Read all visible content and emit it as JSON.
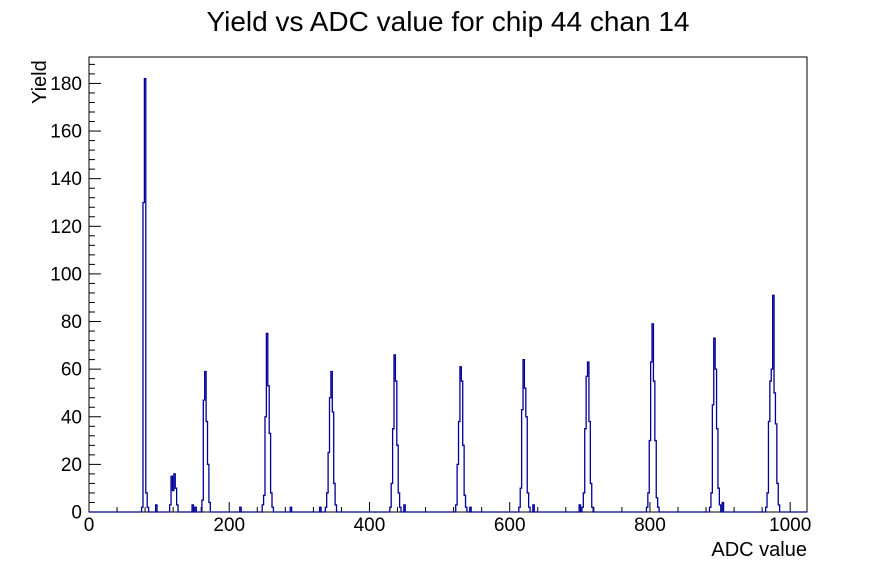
{
  "chart_data": {
    "type": "line",
    "style": "root-histogram-step-outline",
    "title": "Yield vs ADC value for chip 44 chan 14",
    "xlabel": "ADC value",
    "ylabel": "Yield",
    "xlim": [
      0,
      1024
    ],
    "ylim": [
      0,
      191.1
    ],
    "grid": false,
    "legend": "none",
    "line_color": "#000099",
    "frame_color": "#000000",
    "x_major_ticks": [
      0,
      200,
      400,
      600,
      800,
      1000
    ],
    "x_minor_tick_step": 40,
    "y_major_ticks": [
      0,
      20,
      40,
      60,
      80,
      100,
      120,
      140,
      160,
      180
    ],
    "y_minor_tick_step": 4,
    "bin_width": 2,
    "peaks": [
      {
        "adc": 80,
        "max": 182
      },
      {
        "adc": 122,
        "max": 16
      },
      {
        "adc": 166,
        "max": 59
      },
      {
        "adc": 254,
        "max": 75
      },
      {
        "adc": 346,
        "max": 59
      },
      {
        "adc": 436,
        "max": 66
      },
      {
        "adc": 530,
        "max": 61
      },
      {
        "adc": 620,
        "max": 64
      },
      {
        "adc": 712,
        "max": 63
      },
      {
        "adc": 804,
        "max": 79
      },
      {
        "adc": 892,
        "max": 73
      },
      {
        "adc": 976,
        "max": 91
      }
    ],
    "bins": [
      [
        76,
        2
      ],
      [
        78,
        130
      ],
      [
        80,
        182
      ],
      [
        82,
        8
      ],
      [
        84,
        2
      ],
      [
        96,
        3
      ],
      [
        116,
        3
      ],
      [
        118,
        15
      ],
      [
        120,
        9
      ],
      [
        122,
        16
      ],
      [
        124,
        10
      ],
      [
        126,
        3
      ],
      [
        148,
        3
      ],
      [
        152,
        2
      ],
      [
        162,
        5
      ],
      [
        164,
        47
      ],
      [
        166,
        59
      ],
      [
        168,
        38
      ],
      [
        170,
        20
      ],
      [
        172,
        4
      ],
      [
        216,
        2
      ],
      [
        248,
        3
      ],
      [
        250,
        7
      ],
      [
        252,
        40
      ],
      [
        254,
        75
      ],
      [
        256,
        53
      ],
      [
        258,
        33
      ],
      [
        260,
        8
      ],
      [
        262,
        2
      ],
      [
        288,
        2
      ],
      [
        330,
        2
      ],
      [
        338,
        2
      ],
      [
        340,
        8
      ],
      [
        342,
        25
      ],
      [
        344,
        48
      ],
      [
        346,
        59
      ],
      [
        348,
        42
      ],
      [
        350,
        12
      ],
      [
        352,
        3
      ],
      [
        430,
        2
      ],
      [
        432,
        12
      ],
      [
        434,
        35
      ],
      [
        436,
        66
      ],
      [
        438,
        55
      ],
      [
        440,
        28
      ],
      [
        442,
        8
      ],
      [
        444,
        2
      ],
      [
        450,
        3
      ],
      [
        524,
        3
      ],
      [
        526,
        20
      ],
      [
        528,
        38
      ],
      [
        530,
        61
      ],
      [
        532,
        55
      ],
      [
        534,
        28
      ],
      [
        536,
        7
      ],
      [
        538,
        2
      ],
      [
        544,
        2
      ],
      [
        614,
        2
      ],
      [
        616,
        10
      ],
      [
        618,
        43
      ],
      [
        620,
        64
      ],
      [
        622,
        52
      ],
      [
        624,
        40
      ],
      [
        626,
        8
      ],
      [
        628,
        2
      ],
      [
        634,
        3
      ],
      [
        700,
        3
      ],
      [
        704,
        2
      ],
      [
        706,
        8
      ],
      [
        708,
        35
      ],
      [
        710,
        57
      ],
      [
        712,
        63
      ],
      [
        714,
        38
      ],
      [
        716,
        12
      ],
      [
        718,
        2
      ],
      [
        796,
        2
      ],
      [
        798,
        8
      ],
      [
        800,
        30
      ],
      [
        802,
        63
      ],
      [
        804,
        79
      ],
      [
        806,
        55
      ],
      [
        808,
        30
      ],
      [
        810,
        6
      ],
      [
        812,
        2
      ],
      [
        886,
        2
      ],
      [
        888,
        8
      ],
      [
        890,
        45
      ],
      [
        892,
        73
      ],
      [
        894,
        60
      ],
      [
        896,
        35
      ],
      [
        898,
        10
      ],
      [
        900,
        3
      ],
      [
        904,
        4
      ],
      [
        966,
        2
      ],
      [
        968,
        8
      ],
      [
        970,
        38
      ],
      [
        972,
        55
      ],
      [
        974,
        60
      ],
      [
        976,
        91
      ],
      [
        978,
        50
      ],
      [
        980,
        37
      ],
      [
        982,
        12
      ],
      [
        984,
        3
      ]
    ]
  }
}
